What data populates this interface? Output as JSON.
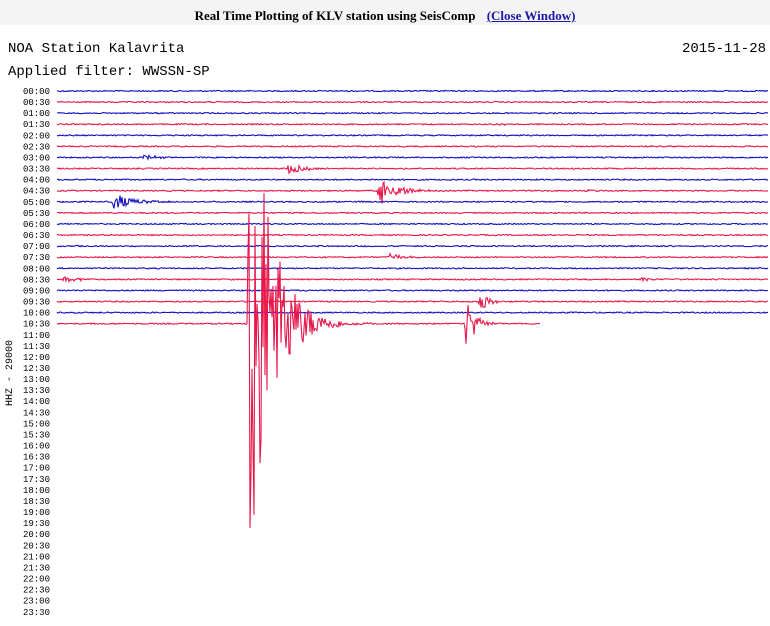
{
  "header": {
    "title": "Real Time Plotting of KLV station using SeisComp",
    "link": "(Close Window)"
  },
  "station": "NOA Station Kalavrita",
  "date": "2015-11-28",
  "filter": "Applied filter: WWSSN-SP",
  "channel_label": "HHZ - 29000",
  "time_labels": [
    "00:00",
    "00:30",
    "01:00",
    "01:30",
    "02:00",
    "02:30",
    "03:00",
    "03:30",
    "04:00",
    "04:30",
    "05:00",
    "05:30",
    "06:00",
    "06:30",
    "07:00",
    "07:30",
    "08:00",
    "08:30",
    "09:00",
    "09:30",
    "10:00",
    "10:30",
    "11:00",
    "11:30",
    "12:00",
    "12:30",
    "13:00",
    "13:30",
    "14:00",
    "14:30",
    "15:00",
    "15:30",
    "16:00",
    "16:30",
    "17:00",
    "17:30",
    "18:00",
    "18:30",
    "19:00",
    "19:30",
    "20:00",
    "20:30",
    "21:00",
    "21:30",
    "22:00",
    "22:30",
    "23:00",
    "23:30"
  ]
}
